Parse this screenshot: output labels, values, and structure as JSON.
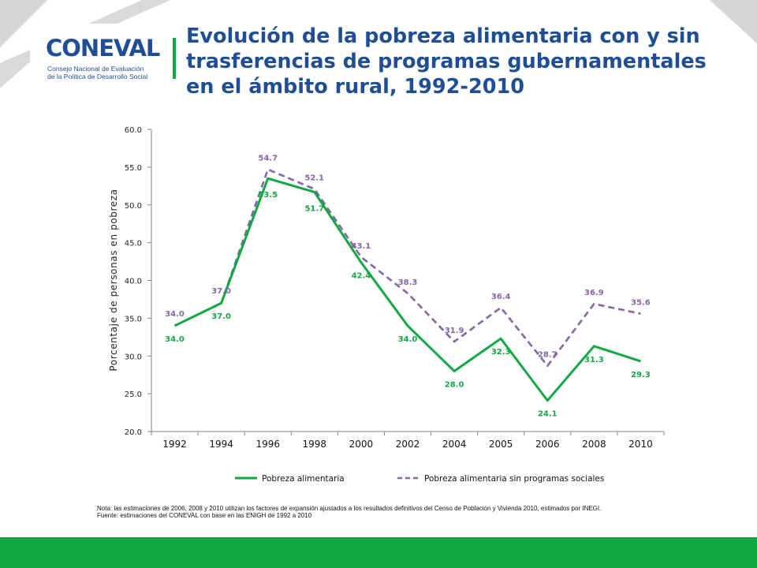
{
  "logo": {
    "wordmark": "CONEVAL",
    "line1": "Consejo Nacional de Evaluación",
    "line2": "de la Política de Desarrollo Social"
  },
  "title_lines": [
    "Evolución de la pobreza alimentaria con y sin",
    "trasferencias de programas gubernamentales",
    "en el ámbito rural, 1992-2010"
  ],
  "notes": [
    "Nota: las estimaciones de 2006, 2008 y 2010 utilizan los factores de expansión ajustados a los resultados definitivos del Censo de Población y Vivienda 2010, estimados por INEGI.",
    "Fuente: estimaciones del CONEVAL con base en las ENIGH de 1992 a 2010"
  ],
  "colors": {
    "green": "#11a843",
    "purple": "#8466a6",
    "navy": "#1f4e96"
  },
  "chart_data": {
    "type": "line",
    "categories": [
      "1992",
      "1994",
      "1996",
      "1998",
      "2000",
      "2002",
      "2004",
      "2005",
      "2006",
      "2008",
      "2010"
    ],
    "series": [
      {
        "name": "Pobreza alimentaria",
        "values": [
          34.0,
          37.0,
          53.5,
          51.7,
          42.4,
          34.0,
          28.0,
          32.3,
          24.1,
          31.3,
          29.3
        ],
        "labels": [
          "34.0",
          "37.0",
          "53.5",
          "51.7",
          "42.4",
          "34.0",
          "28.0",
          "32.3",
          "24.1",
          "31.3",
          "29.3"
        ],
        "color": "#11a843",
        "style": "solid"
      },
      {
        "name": "Pobreza alimentaria sin programas sociales",
        "values": [
          34.0,
          37.0,
          54.7,
          52.1,
          43.1,
          38.3,
          31.9,
          36.4,
          28.7,
          36.9,
          35.6
        ],
        "labels": [
          "34.0",
          "37.0",
          "54.7",
          "52.1",
          "43.1",
          "38.3",
          "31.9",
          "36.4",
          "28.7",
          "36.9",
          "35.6"
        ],
        "color": "#8466a6",
        "style": "dashed"
      }
    ],
    "ylabel": "Porcentaje de personas en pobreza",
    "ylim": [
      20.0,
      60.0
    ],
    "yticks": [
      "20.0",
      "25.0",
      "30.0",
      "35.0",
      "40.0",
      "45.0",
      "50.0",
      "55.0",
      "60.0"
    ],
    "legend_position": "bottom",
    "grid": false
  }
}
